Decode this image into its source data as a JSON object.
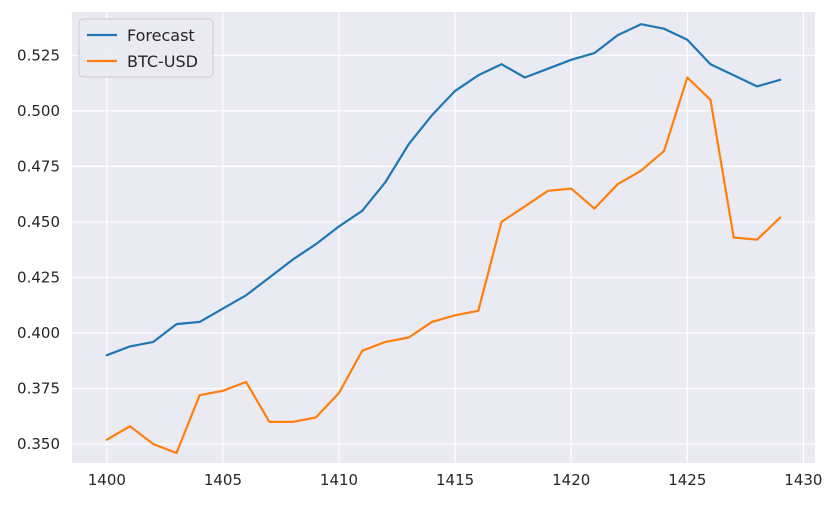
{
  "chart_data": {
    "type": "line",
    "title": "",
    "xlabel": "",
    "ylabel": "",
    "grid": true,
    "legend_position": "top-left",
    "xlim": [
      1398.5,
      1430.5
    ],
    "ylim": [
      0.3415,
      0.5445
    ],
    "x_ticks": [
      1400,
      1405,
      1410,
      1415,
      1420,
      1425,
      1430
    ],
    "x_tick_labels": [
      "1400",
      "1405",
      "1410",
      "1415",
      "1420",
      "1425",
      "1430"
    ],
    "y_ticks": [
      0.35,
      0.375,
      0.4,
      0.425,
      0.45,
      0.475,
      0.5,
      0.525
    ],
    "y_tick_labels": [
      "0.350",
      "0.375",
      "0.400",
      "0.425",
      "0.450",
      "0.475",
      "0.500",
      "0.525"
    ],
    "x": [
      1400,
      1401,
      1402,
      1403,
      1404,
      1405,
      1406,
      1407,
      1408,
      1409,
      1410,
      1411,
      1412,
      1413,
      1414,
      1415,
      1416,
      1417,
      1418,
      1419,
      1420,
      1421,
      1422,
      1423,
      1424,
      1425,
      1426,
      1427,
      1428,
      1429
    ],
    "series": [
      {
        "name": "Forecast",
        "color": "#1f77b4",
        "values": [
          0.39,
          0.394,
          0.396,
          0.404,
          0.405,
          0.411,
          0.417,
          0.425,
          0.433,
          0.44,
          0.448,
          0.455,
          0.468,
          0.485,
          0.498,
          0.509,
          0.516,
          0.521,
          0.515,
          0.519,
          0.523,
          0.526,
          0.534,
          0.539,
          0.537,
          0.532,
          0.521,
          0.516,
          0.511,
          0.514
        ]
      },
      {
        "name": "BTC-USD",
        "color": "#ff7f0e",
        "values": [
          0.352,
          0.358,
          0.35,
          0.346,
          0.372,
          0.374,
          0.378,
          0.36,
          0.36,
          0.362,
          0.373,
          0.392,
          0.396,
          0.398,
          0.405,
          0.408,
          0.41,
          0.45,
          0.457,
          0.464,
          0.465,
          0.456,
          0.467,
          0.473,
          0.482,
          0.515,
          0.505,
          0.443,
          0.442,
          0.452
        ]
      }
    ],
    "style": {
      "plot_background": "#eaeaf2",
      "grid_color": "#ffffff",
      "text_color": "#262626"
    }
  }
}
